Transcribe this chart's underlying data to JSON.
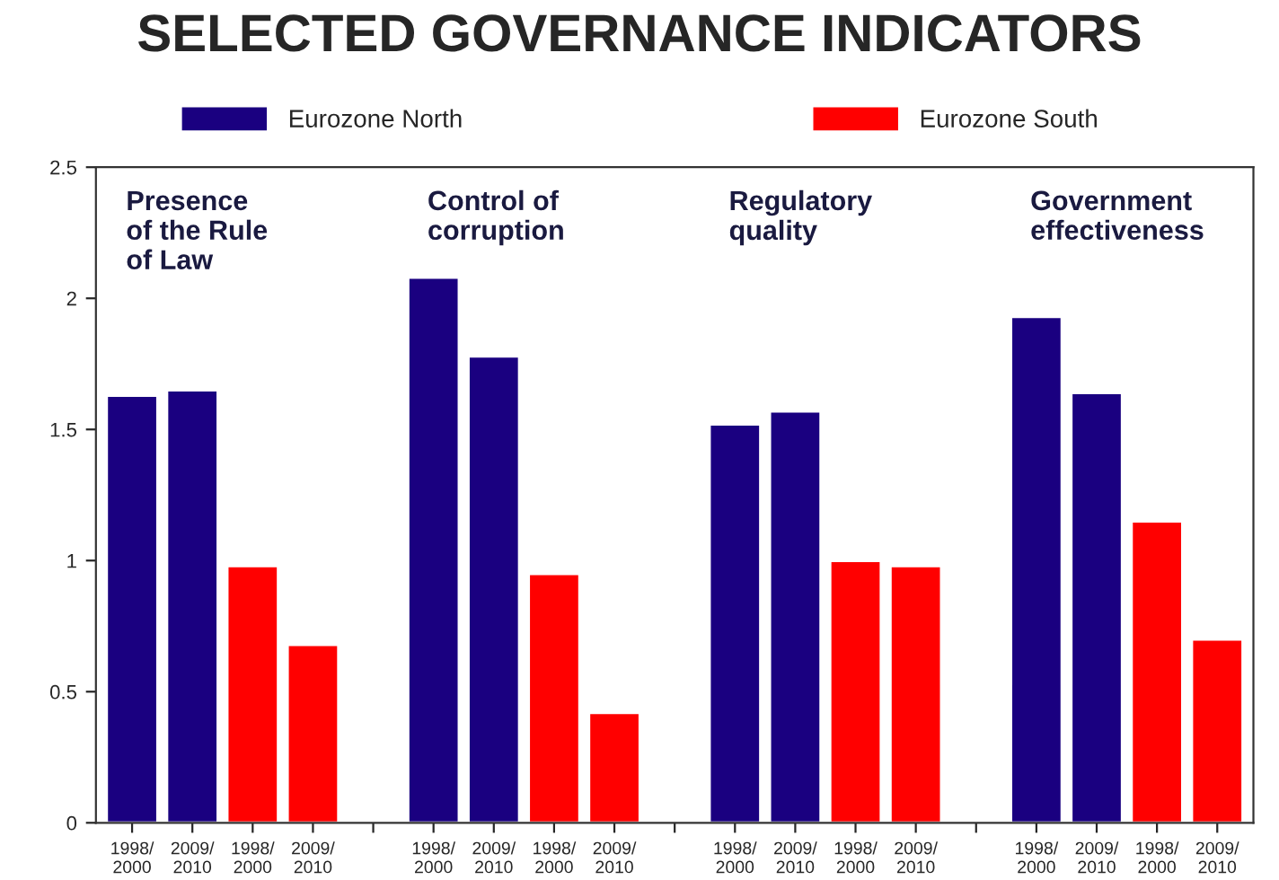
{
  "chart_data": {
    "type": "bar",
    "title": "SELECTED GOVERNANCE INDICATORS",
    "categories": [
      "1998/\n2000",
      "2009/\n2010",
      "1998/\n2000",
      "2009/\n2010",
      null,
      "1998/\n2000",
      "2009/\n2010",
      "1998/\n2000",
      "2009/\n2010",
      null,
      "1998/\n2000",
      "2009/\n2010",
      "1998/\n2000",
      "2009/\n2010",
      null,
      "1998/\n2000",
      "2009/\n2010",
      "1998/\n2000",
      "2009/\n2010"
    ],
    "series": [
      {
        "name": "Eurozone North",
        "color": "#1a0080",
        "values": [
          1.63,
          1.65,
          null,
          null,
          null,
          2.08,
          1.78,
          null,
          null,
          null,
          1.52,
          1.57,
          null,
          null,
          null,
          1.93,
          1.64,
          null,
          null
        ]
      },
      {
        "name": "Eurozone South",
        "color": "#ff0000",
        "values": [
          null,
          null,
          0.98,
          0.68,
          null,
          null,
          null,
          0.95,
          0.42,
          null,
          null,
          null,
          1.0,
          0.98,
          null,
          null,
          null,
          1.15,
          0.7
        ]
      }
    ],
    "annotations": [
      "Presence\nof the Rule\nof Law",
      "Control of\ncorruption",
      "Regulatory\nquality",
      "Government\neffectiveness"
    ],
    "ylim": [
      0,
      2.5
    ],
    "yticks": [
      0,
      0.5,
      1,
      1.5,
      2,
      2.5
    ],
    "grid": false,
    "legend": "top"
  }
}
